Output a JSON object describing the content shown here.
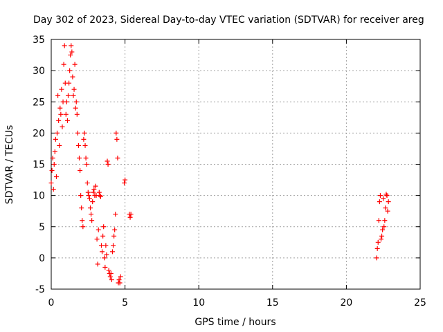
{
  "chart_data": {
    "type": "scatter",
    "title": "Day 302 of 2023, Sidereal Day-to-day VTEC variation (SDTVAR) for receiver areg",
    "xlabel": "GPS time / hours",
    "ylabel": "SDTVAR / TECUs",
    "xlim": [
      0,
      25
    ],
    "ylim": [
      -5,
      35
    ],
    "xticks": [
      0,
      5,
      10,
      15,
      20,
      25
    ],
    "yticks": [
      -5,
      0,
      5,
      10,
      15,
      20,
      25,
      30,
      35
    ],
    "xtick_labels": [
      "0",
      "5",
      "10",
      "15",
      "20",
      "25"
    ],
    "ytick_labels": [
      "-5",
      "0",
      "5",
      "10",
      "15",
      "20",
      "25",
      "30",
      "35"
    ],
    "grid": true,
    "marker": "+",
    "colors": {
      "series": "#ff0000",
      "grid": "#a0a0a0",
      "axis": "#000000"
    },
    "series": [
      {
        "name": "SDTVAR",
        "x": [
          0.0,
          0.05,
          0.1,
          0.15,
          0.2,
          0.25,
          0.3,
          0.35,
          0.4,
          0.45,
          0.5,
          0.55,
          0.6,
          0.65,
          0.7,
          0.75,
          0.8,
          0.85,
          0.9,
          0.95,
          1.0,
          1.05,
          1.1,
          1.15,
          1.2,
          1.25,
          1.3,
          1.35,
          1.4,
          1.45,
          1.5,
          1.55,
          1.6,
          1.65,
          1.7,
          1.75,
          1.8,
          1.85,
          1.9,
          1.95,
          2.0,
          2.05,
          2.1,
          2.15,
          2.2,
          2.25,
          2.3,
          2.35,
          2.4,
          2.45,
          2.5,
          2.55,
          2.6,
          2.65,
          2.7,
          2.75,
          2.8,
          2.85,
          2.9,
          2.95,
          3.0,
          3.05,
          3.1,
          3.15,
          3.2,
          3.25,
          3.3,
          3.35,
          3.4,
          3.45,
          3.5,
          3.55,
          3.6,
          3.65,
          3.7,
          3.75,
          3.8,
          3.85,
          3.9,
          3.95,
          4.0,
          4.05,
          4.1,
          4.15,
          4.2,
          4.25,
          4.3,
          4.35,
          4.4,
          4.45,
          4.5,
          4.55,
          4.6,
          4.65,
          4.7,
          4.95,
          5.0,
          5.3,
          5.35,
          5.4,
          22.05,
          22.1,
          22.15,
          22.2,
          22.25,
          22.3,
          22.35,
          22.4,
          22.45,
          22.5,
          22.55,
          22.6,
          22.65,
          22.7,
          22.75,
          22.8,
          22.85
        ],
        "y": [
          12.0,
          14.0,
          16.0,
          11.0,
          15.0,
          17.0,
          19.0,
          13.0,
          20.0,
          26.0,
          22.0,
          18.0,
          24.0,
          23.0,
          27.0,
          21.0,
          25.0,
          31.0,
          34.0,
          28.0,
          23.0,
          25.0,
          22.0,
          26.0,
          28.0,
          30.0,
          32.5,
          34.0,
          33.0,
          29.0,
          26.0,
          27.0,
          31.0,
          24.0,
          25.0,
          23.0,
          20.0,
          18.0,
          16.0,
          14.0,
          10.0,
          8.0,
          6.0,
          5.0,
          19.0,
          20.0,
          18.0,
          16.0,
          15.0,
          12.0,
          10.5,
          10.0,
          9.5,
          8.0,
          7.0,
          6.0,
          9.0,
          10.5,
          11.0,
          10.0,
          11.5,
          10.0,
          3.0,
          -1.0,
          4.5,
          10.5,
          10.0,
          9.8,
          2.0,
          1.0,
          3.5,
          5.0,
          0.0,
          -1.5,
          2.0,
          0.5,
          15.5,
          15.0,
          -2.0,
          -2.5,
          -3.0,
          -2.5,
          -3.5,
          1.0,
          2.0,
          3.5,
          4.5,
          7.0,
          20.0,
          19.0,
          16.0,
          -4.0,
          -3.5,
          -4.0,
          -3.0,
          12.0,
          12.5,
          7.0,
          6.5,
          7.0,
          0.0,
          1.5,
          2.5,
          6.0,
          9.0,
          10.0,
          3.0,
          3.5,
          4.5,
          9.5,
          5.0,
          6.0,
          8.0,
          10.2,
          10.0,
          7.5,
          9.0
        ]
      }
    ]
  }
}
